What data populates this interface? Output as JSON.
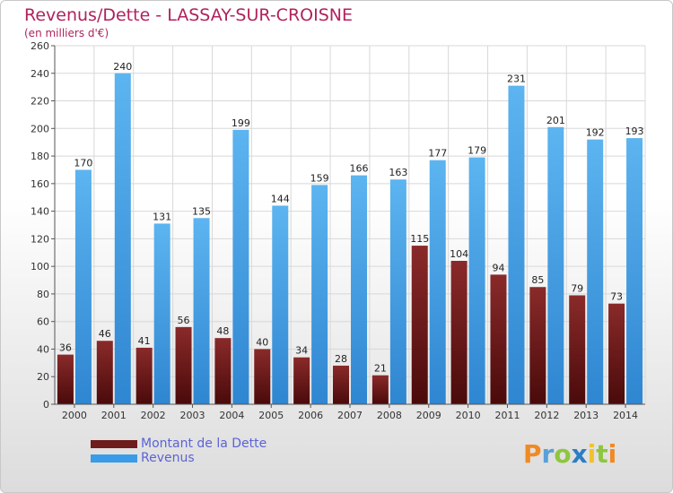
{
  "header": {
    "title": "Revenus/Dette - LASSAY-SUR-CROISNE",
    "subtitle": "(en milliers d'€)"
  },
  "legend": {
    "items": [
      {
        "label": "Montant de la Dette",
        "color": "#6e1c1c"
      },
      {
        "label": "Revenus",
        "color": "#3a9be6"
      }
    ]
  },
  "logo": {
    "letters": [
      "P",
      "r",
      "o",
      "x",
      "i",
      "t",
      "i"
    ],
    "colors": [
      "#f08a24",
      "#5aa0d8",
      "#8ec63f",
      "#2a7fc4",
      "#f2c12e",
      "#8ec63f",
      "#f08a24"
    ]
  },
  "colors": {
    "debt_top": "#8a2a2a",
    "debt_bottom": "#4a0a0a",
    "revenue_top": "#5cb4f0",
    "revenue_bottom": "#2f86d1",
    "grid": "#d8d8d8",
    "axis": "#555555"
  },
  "chart_data": {
    "type": "bar",
    "title": "Revenus/Dette - LASSAY-SUR-CROISNE",
    "subtitle": "(en milliers d'€)",
    "categories": [
      "2000",
      "2001",
      "2002",
      "2003",
      "2004",
      "2005",
      "2006",
      "2007",
      "2008",
      "2009",
      "2010",
      "2011",
      "2012",
      "2013",
      "2014"
    ],
    "series": [
      {
        "name": "Montant de la Dette",
        "values": [
          36,
          46,
          41,
          56,
          48,
          40,
          34,
          28,
          21,
          115,
          104,
          94,
          85,
          79,
          73
        ]
      },
      {
        "name": "Revenus",
        "values": [
          170,
          240,
          131,
          135,
          199,
          144,
          159,
          166,
          163,
          177,
          179,
          231,
          201,
          192,
          193
        ]
      }
    ],
    "ylim": [
      0,
      260
    ],
    "yticks": [
      0,
      20,
      40,
      60,
      80,
      100,
      120,
      140,
      160,
      180,
      200,
      220,
      240,
      260
    ],
    "grid": true,
    "legend_position": "bottom-left"
  }
}
